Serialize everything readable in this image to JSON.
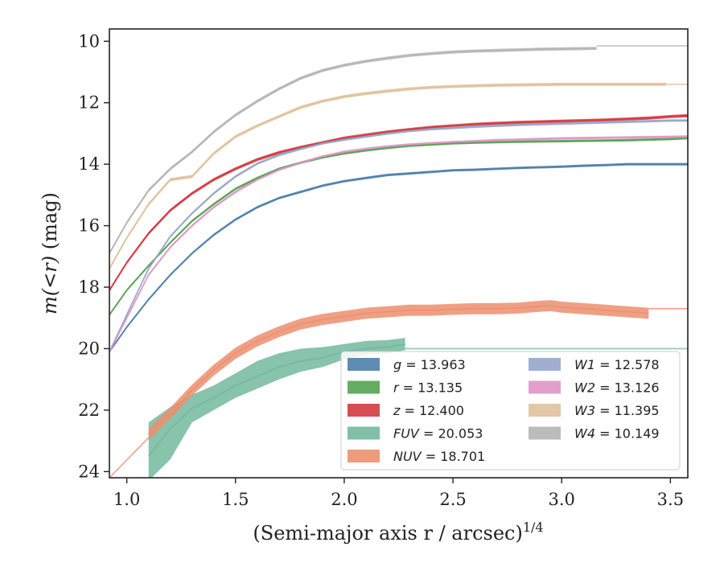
{
  "chart_data": {
    "type": "line",
    "xlabel": "(Semi-major axis r / arcsec)",
    "xlabel_sup": "1/4",
    "ylabel_prefix": "m(<r)",
    "ylabel_suffix": " (mag)",
    "xlim": [
      0.92,
      3.58
    ],
    "ylim": [
      24.2,
      9.6
    ],
    "y_inverted": true,
    "xticks": [
      1.0,
      1.5,
      2.0,
      2.5,
      3.0,
      3.5
    ],
    "xtick_labels": [
      "1.0",
      "1.5",
      "2.0",
      "2.5",
      "3.0",
      "3.5"
    ],
    "yticks": [
      10,
      12,
      14,
      16,
      18,
      20,
      22,
      24
    ],
    "ytick_labels": [
      "10",
      "12",
      "14",
      "16",
      "18",
      "20",
      "22",
      "24"
    ],
    "grid": false,
    "legend_position": "lower-right",
    "series": [
      {
        "name": "g",
        "label": "g = 13.963",
        "color": "#4c7fad",
        "x": [
          0.92,
          1.0,
          1.1,
          1.2,
          1.3,
          1.4,
          1.5,
          1.6,
          1.7,
          1.8,
          1.9,
          2.0,
          2.1,
          2.2,
          2.3,
          2.4,
          2.5,
          2.6,
          2.7,
          2.8,
          2.9,
          3.0,
          3.1,
          3.2,
          3.3,
          3.4,
          3.5,
          3.58
        ],
        "y": [
          20.1,
          19.3,
          18.4,
          17.6,
          16.9,
          16.3,
          15.8,
          15.4,
          15.1,
          14.9,
          14.7,
          14.55,
          14.45,
          14.35,
          14.3,
          14.25,
          14.2,
          14.18,
          14.15,
          14.12,
          14.1,
          14.08,
          14.05,
          14.03,
          14.0,
          14.0,
          14.0,
          14.0
        ],
        "band": 0.04
      },
      {
        "name": "r",
        "label": "r = 13.135",
        "color": "#55a351",
        "x": [
          0.92,
          1.0,
          1.1,
          1.2,
          1.3,
          1.4,
          1.5,
          1.6,
          1.7,
          1.8,
          1.9,
          2.0,
          2.1,
          2.2,
          2.3,
          2.4,
          2.5,
          2.6,
          2.7,
          2.8,
          2.9,
          3.0,
          3.1,
          3.2,
          3.3,
          3.4,
          3.5,
          3.58
        ],
        "y": [
          18.9,
          18.1,
          17.3,
          16.55,
          15.85,
          15.3,
          14.8,
          14.45,
          14.15,
          13.95,
          13.78,
          13.65,
          13.55,
          13.47,
          13.4,
          13.36,
          13.32,
          13.3,
          13.28,
          13.27,
          13.26,
          13.25,
          13.24,
          13.23,
          13.22,
          13.2,
          13.18,
          13.15
        ],
        "band": 0.04
      },
      {
        "name": "z",
        "label": "z = 12.400",
        "color": "#d43a3e",
        "x": [
          0.92,
          1.0,
          1.1,
          1.2,
          1.3,
          1.4,
          1.5,
          1.6,
          1.7,
          1.8,
          1.9,
          2.0,
          2.1,
          2.2,
          2.3,
          2.4,
          2.5,
          2.6,
          2.7,
          2.8,
          2.9,
          3.0,
          3.1,
          3.2,
          3.3,
          3.4,
          3.5,
          3.58
        ],
        "y": [
          18.1,
          17.2,
          16.25,
          15.5,
          14.95,
          14.5,
          14.15,
          13.85,
          13.62,
          13.45,
          13.3,
          13.15,
          13.05,
          12.95,
          12.87,
          12.8,
          12.75,
          12.7,
          12.67,
          12.64,
          12.62,
          12.6,
          12.58,
          12.56,
          12.53,
          12.5,
          12.45,
          12.42
        ],
        "band": 0.05
      },
      {
        "name": "FUV",
        "label": "FUV = 20.053",
        "color": "#73b89e",
        "x": [
          1.1,
          1.2,
          1.3,
          1.4,
          1.5,
          1.6,
          1.7,
          1.8,
          1.9,
          2.0,
          2.1,
          2.2,
          2.28
        ],
        "y": [
          23.5,
          22.6,
          21.95,
          21.6,
          21.2,
          20.9,
          20.6,
          20.4,
          20.3,
          20.1,
          20.0,
          19.95,
          19.85
        ],
        "band_upper": [
          22.4,
          21.9,
          21.5,
          21.2,
          20.8,
          20.4,
          20.15,
          20.0,
          19.95,
          19.85,
          19.75,
          19.72,
          19.65
        ],
        "band_lower": [
          24.3,
          23.6,
          22.4,
          22.0,
          21.6,
          21.3,
          21.0,
          20.75,
          20.6,
          20.35,
          20.2,
          20.15,
          20.05
        ],
        "extension": {
          "x": [
            2.28,
            3.58
          ],
          "y": [
            20.0,
            20.0
          ]
        }
      },
      {
        "name": "NUV",
        "label": "NUV = 18.701",
        "color": "#ec8f6e",
        "x": [
          1.1,
          1.2,
          1.3,
          1.4,
          1.5,
          1.6,
          1.7,
          1.8,
          1.9,
          2.0,
          2.1,
          2.2,
          2.3,
          2.4,
          2.5,
          2.6,
          2.7,
          2.8,
          2.9,
          2.95,
          3.0,
          3.1,
          3.2,
          3.3,
          3.4
        ],
        "y": [
          22.8,
          22.1,
          21.35,
          20.7,
          20.15,
          19.75,
          19.45,
          19.2,
          19.05,
          18.95,
          18.85,
          18.8,
          18.75,
          18.75,
          18.72,
          18.7,
          18.7,
          18.68,
          18.62,
          18.6,
          18.65,
          18.7,
          18.75,
          18.8,
          18.85
        ],
        "band": 0.18,
        "extension": {
          "x": [
            3.4,
            3.58
          ],
          "y": [
            18.7,
            18.7
          ]
        },
        "extension_left": {
          "x": [
            0.92,
            1.1
          ],
          "y": [
            24.2,
            22.9
          ]
        }
      },
      {
        "name": "W1",
        "label": "W1 = 12.578",
        "color": "#96a6cb",
        "x": [
          0.92,
          1.0,
          1.1,
          1.2,
          1.3,
          1.4,
          1.5,
          1.6,
          1.7,
          1.8,
          1.9,
          2.0,
          2.1,
          2.2,
          2.3,
          2.4,
          2.5,
          2.6,
          2.7,
          2.8,
          2.9,
          3.0,
          3.1,
          3.2,
          3.3,
          3.4,
          3.5,
          3.58
        ],
        "y": [
          20.1,
          18.9,
          17.4,
          16.35,
          15.6,
          14.95,
          14.4,
          13.98,
          13.7,
          13.5,
          13.32,
          13.2,
          13.1,
          13.0,
          12.92,
          12.86,
          12.82,
          12.78,
          12.75,
          12.72,
          12.7,
          12.68,
          12.66,
          12.64,
          12.62,
          12.6,
          12.58,
          12.58
        ],
        "band": 0.04
      },
      {
        "name": "W2",
        "label": "W2 = 13.126",
        "color": "#de96c6",
        "x": [
          0.92,
          1.0,
          1.1,
          1.2,
          1.3,
          1.4,
          1.5,
          1.6,
          1.7,
          1.8,
          1.9,
          2.0,
          2.1,
          2.2,
          2.3,
          2.4,
          2.5,
          2.6,
          2.7,
          2.8,
          2.9,
          3.0,
          3.1,
          3.2,
          3.3,
          3.4,
          3.5,
          3.58
        ],
        "y": [
          20.1,
          19.0,
          17.6,
          16.7,
          16.0,
          15.4,
          14.9,
          14.5,
          14.18,
          13.95,
          13.75,
          13.6,
          13.5,
          13.42,
          13.36,
          13.32,
          13.28,
          13.25,
          13.22,
          13.2,
          13.18,
          13.16,
          13.15,
          13.14,
          13.13,
          13.12,
          13.11,
          13.1
        ],
        "band": 0.04
      },
      {
        "name": "W3",
        "label": "W3 = 11.395",
        "color": "#dfc29c",
        "x": [
          0.92,
          1.0,
          1.1,
          1.2,
          1.3,
          1.4,
          1.5,
          1.6,
          1.7,
          1.8,
          1.9,
          2.0,
          2.1,
          2.2,
          2.3,
          2.4,
          2.5,
          2.6,
          2.7,
          2.8,
          2.9,
          3.0,
          3.1,
          3.2,
          3.3,
          3.4,
          3.48
        ],
        "y": [
          17.4,
          16.4,
          15.3,
          14.5,
          14.4,
          13.65,
          13.1,
          12.75,
          12.45,
          12.15,
          11.95,
          11.8,
          11.7,
          11.62,
          11.55,
          11.5,
          11.47,
          11.45,
          11.43,
          11.42,
          11.41,
          11.4,
          11.4,
          11.4,
          11.4,
          11.4,
          11.4
        ],
        "band": 0.05,
        "extension": {
          "x": [
            3.48,
            3.58
          ],
          "y": [
            11.4,
            11.4
          ]
        }
      },
      {
        "name": "W4",
        "label": "W4 = 10.149",
        "color": "#b5b5b5",
        "x": [
          0.92,
          1.0,
          1.1,
          1.2,
          1.3,
          1.4,
          1.5,
          1.6,
          1.7,
          1.8,
          1.9,
          2.0,
          2.1,
          2.2,
          2.3,
          2.4,
          2.5,
          2.6,
          2.7,
          2.8,
          2.9,
          3.0,
          3.1,
          3.16
        ],
        "y": [
          16.9,
          15.9,
          14.85,
          14.15,
          13.6,
          12.95,
          12.4,
          11.95,
          11.55,
          11.2,
          10.95,
          10.78,
          10.65,
          10.55,
          10.46,
          10.4,
          10.35,
          10.32,
          10.3,
          10.28,
          10.26,
          10.25,
          10.24,
          10.23
        ],
        "band": 0.05,
        "extension": {
          "x": [
            3.16,
            3.58
          ],
          "y": [
            10.15,
            10.15
          ]
        }
      }
    ],
    "legend": {
      "columns": [
        [
          "g",
          "r",
          "z",
          "FUV",
          "NUV"
        ],
        [
          "W1",
          "W2",
          "W3",
          "W4"
        ]
      ]
    }
  }
}
